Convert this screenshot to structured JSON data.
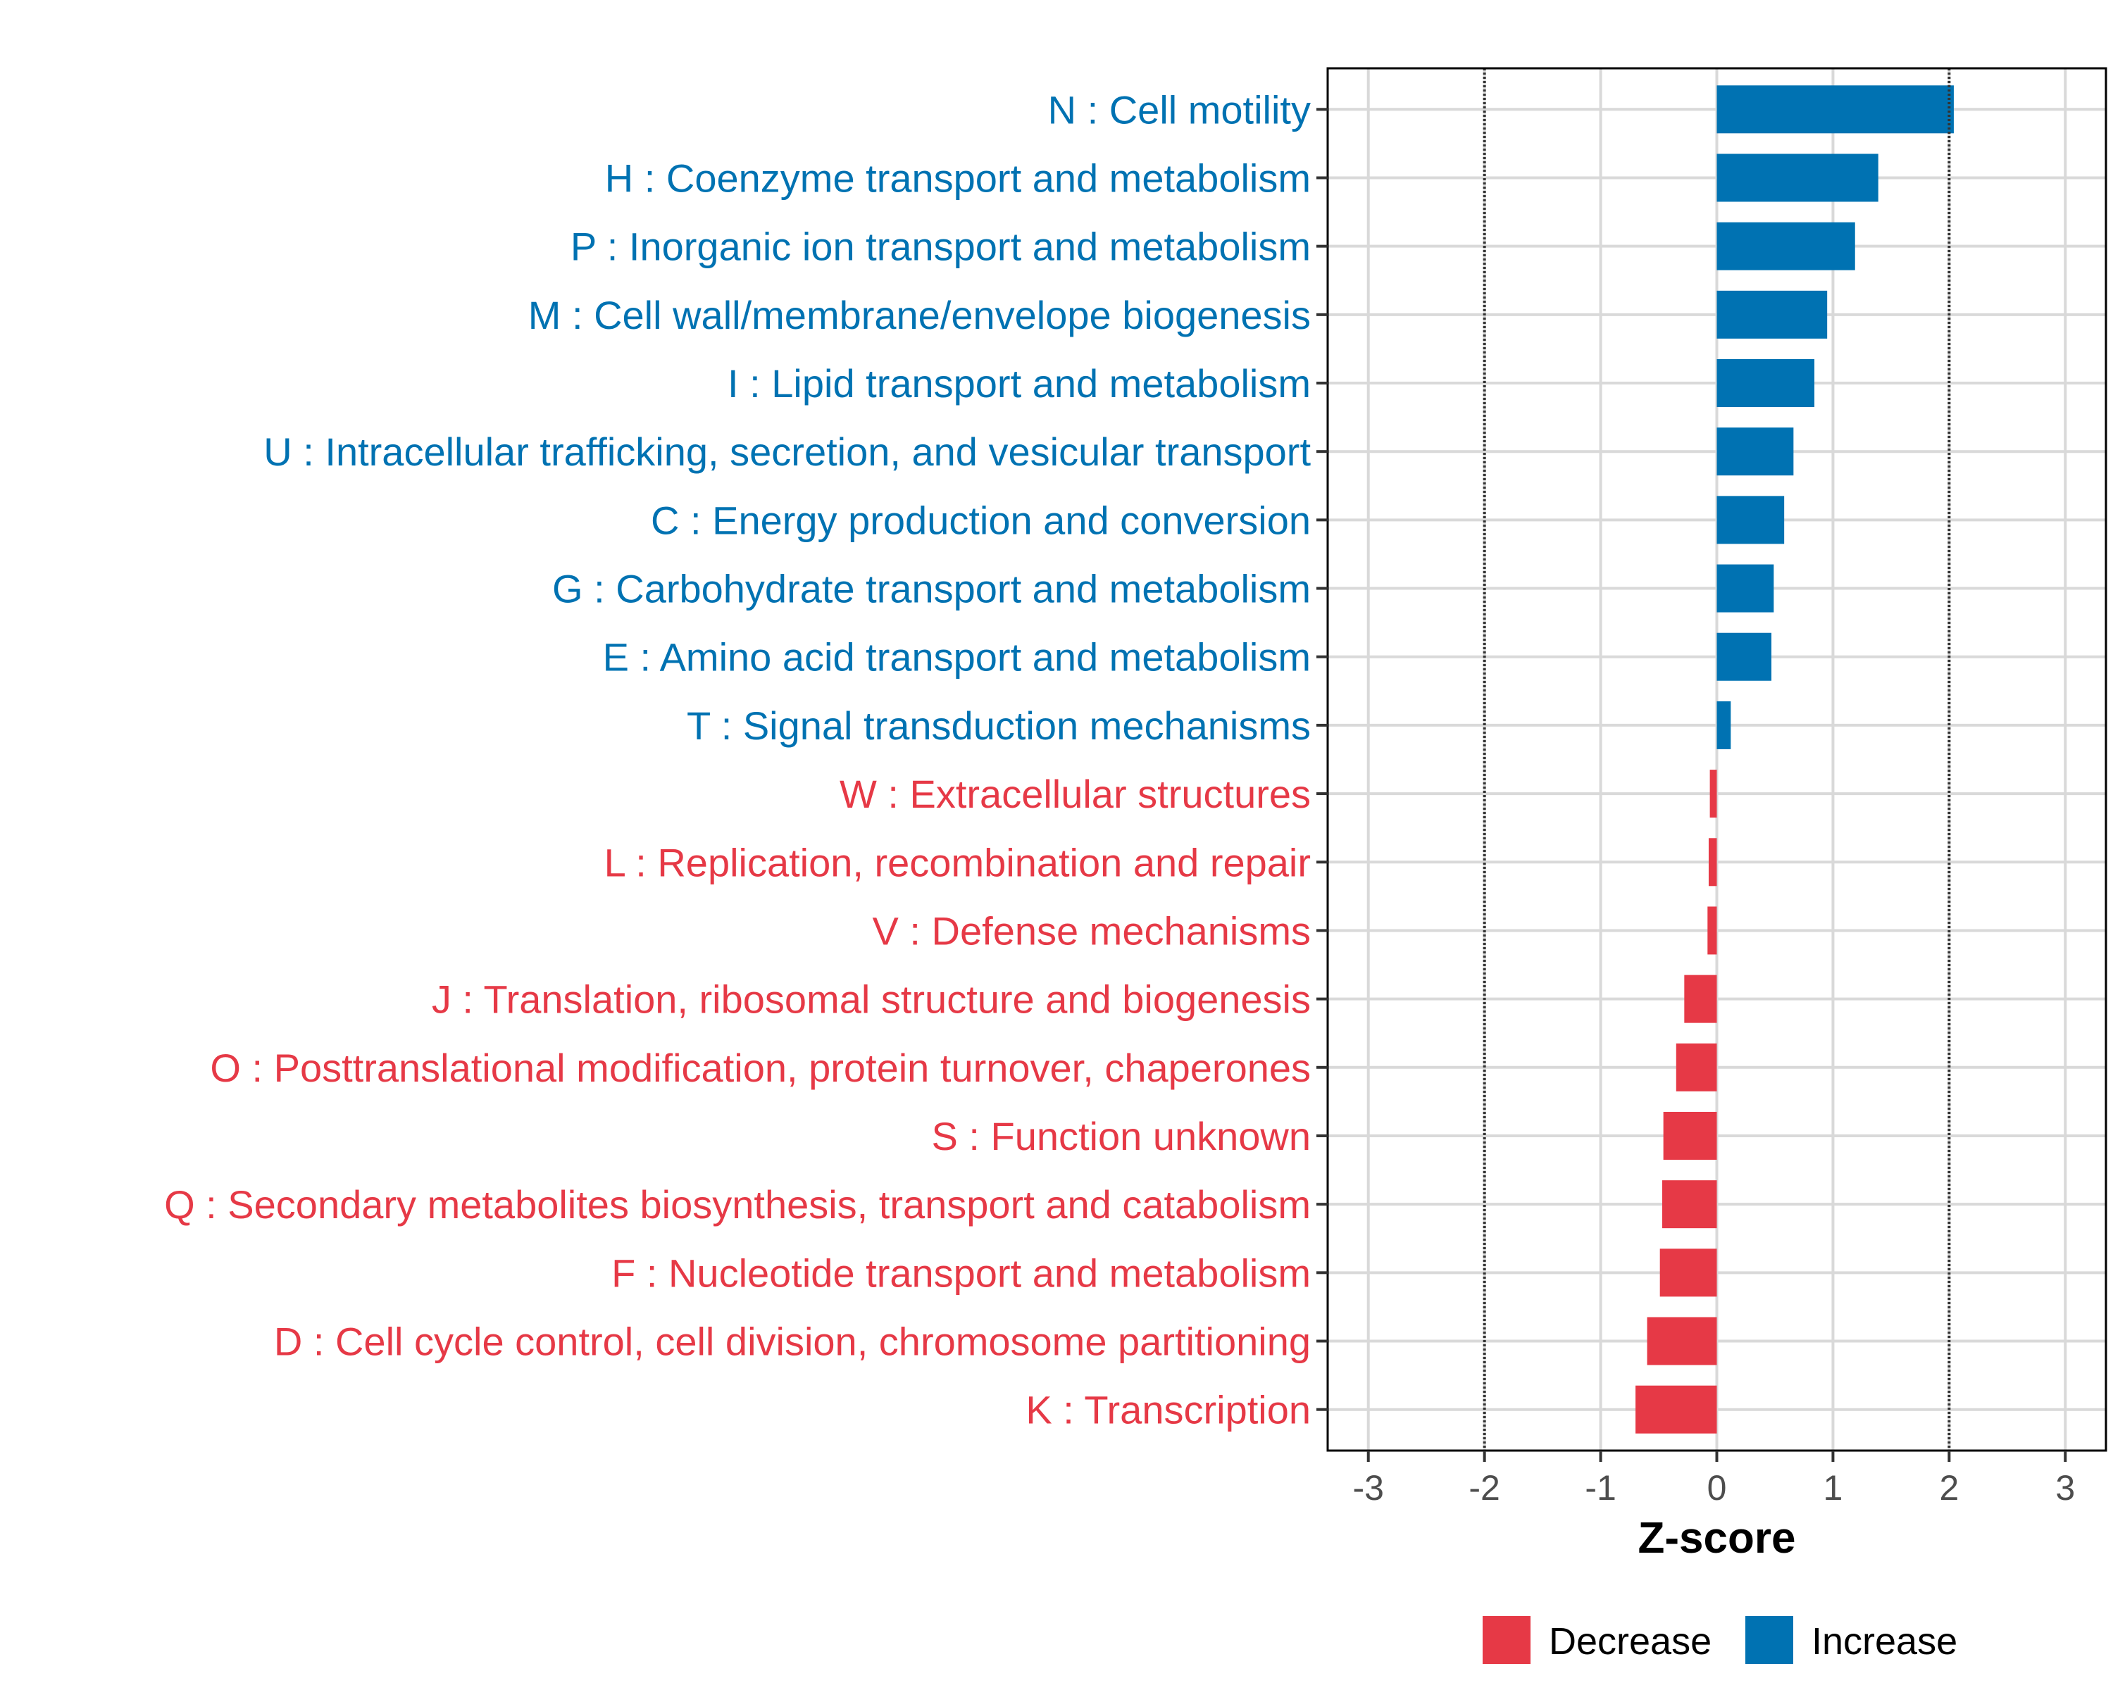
{
  "chart_data": {
    "type": "bar",
    "orientation": "horizontal",
    "xlabel": "Z-score",
    "ylabel": "",
    "xlim": [
      -3.35,
      3.35
    ],
    "xticks": [
      -3,
      -2,
      -1,
      0,
      1,
      2,
      3
    ],
    "xtick_labels": [
      "-3",
      "-2",
      "-1",
      "0",
      "1",
      "2",
      "3"
    ],
    "threshold_lines": [
      -2,
      2
    ],
    "grid": true,
    "legend_position": "bottom",
    "legend": [
      {
        "name": "Decrease",
        "color": "#e63946"
      },
      {
        "name": "Increase",
        "color": "#0072b2"
      }
    ],
    "categories": [
      "N : Cell motility",
      "H : Coenzyme transport and metabolism",
      "P : Inorganic ion transport and metabolism",
      "M : Cell wall/membrane/envelope biogenesis",
      "I : Lipid transport and metabolism",
      "U : Intracellular trafficking, secretion, and vesicular transport",
      "C : Energy production and conversion",
      "G : Carbohydrate transport and metabolism",
      "E : Amino acid transport and metabolism",
      "T : Signal transduction mechanisms",
      "W : Extracellular structures",
      "L : Replication, recombination and repair",
      "V : Defense mechanisms",
      "J : Translation, ribosomal structure and biogenesis",
      "O : Posttranslational modification, protein turnover, chaperones",
      "S : Function unknown",
      "Q : Secondary metabolites biosynthesis, transport and catabolism",
      "F : Nucleotide transport and metabolism",
      "D : Cell cycle control, cell division, chromosome partitioning",
      "K : Transcription"
    ],
    "values": [
      2.04,
      1.39,
      1.19,
      0.95,
      0.84,
      0.66,
      0.58,
      0.49,
      0.47,
      0.12,
      -0.06,
      -0.07,
      -0.08,
      -0.28,
      -0.35,
      -0.46,
      -0.47,
      -0.49,
      -0.6,
      -0.7
    ],
    "groups": [
      "Increase",
      "Increase",
      "Increase",
      "Increase",
      "Increase",
      "Increase",
      "Increase",
      "Increase",
      "Increase",
      "Increase",
      "Decrease",
      "Decrease",
      "Decrease",
      "Decrease",
      "Decrease",
      "Decrease",
      "Decrease",
      "Decrease",
      "Decrease",
      "Decrease"
    ]
  }
}
